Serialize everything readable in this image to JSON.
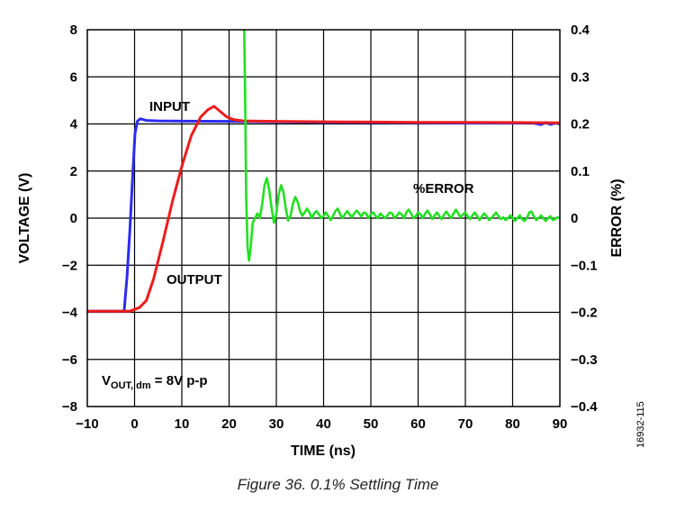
{
  "chart_data": {
    "type": "line",
    "xlabel": "TIME (ns)",
    "ylabel": "VOLTAGE (V)",
    "y2label": "ERROR (%)",
    "xlim": [
      -10,
      90
    ],
    "ylim": [
      -8,
      8
    ],
    "y2lim": [
      -0.4,
      0.4
    ],
    "grid": true,
    "x_ticks": [
      "−10",
      "0",
      "10",
      "20",
      "30",
      "40",
      "50",
      "60",
      "70",
      "80",
      "90"
    ],
    "y_ticks": [
      "8",
      "6",
      "4",
      "2",
      "0",
      "−2",
      "−4",
      "−6",
      "−8"
    ],
    "y2_ticks": [
      "0.4",
      "0.3",
      "0.2",
      "0.1",
      "0",
      "−0.1",
      "−0.2",
      "−0.3",
      "−0.4"
    ],
    "annotation": {
      "prefix": "V",
      "sub": "OUT, dm",
      "suffix": " = 8V p-p"
    },
    "series": [
      {
        "name": "INPUT",
        "axis": "left",
        "color": "#2c2cf0",
        "points": [
          [
            -10,
            -3.95
          ],
          [
            -2.2,
            -3.95
          ],
          [
            -1.6,
            -2.5
          ],
          [
            -1.0,
            -0.5
          ],
          [
            -0.4,
            1.8
          ],
          [
            0.1,
            3.6
          ],
          [
            0.6,
            4.12
          ],
          [
            1.2,
            4.22
          ],
          [
            2.5,
            4.15
          ],
          [
            5,
            4.13
          ],
          [
            10,
            4.12
          ],
          [
            20,
            4.11
          ],
          [
            30,
            4.09
          ],
          [
            40,
            4.07
          ],
          [
            50,
            4.06
          ],
          [
            60,
            4.05
          ],
          [
            70,
            4.04
          ],
          [
            80,
            4.04
          ],
          [
            84,
            4.05
          ],
          [
            86,
            3.97
          ],
          [
            87,
            4.06
          ],
          [
            88,
            3.98
          ],
          [
            89,
            4.04
          ],
          [
            90,
            4.0
          ]
        ]
      },
      {
        "name": "OUTPUT",
        "axis": "left",
        "color": "#ee1c1c",
        "points": [
          [
            -10,
            -3.95
          ],
          [
            -1,
            -3.95
          ],
          [
            1,
            -3.8
          ],
          [
            2.5,
            -3.5
          ],
          [
            4,
            -2.6
          ],
          [
            6,
            -1.0
          ],
          [
            8,
            0.7
          ],
          [
            10,
            2.2
          ],
          [
            12,
            3.5
          ],
          [
            14,
            4.3
          ],
          [
            15.5,
            4.6
          ],
          [
            16.8,
            4.75
          ],
          [
            18.2,
            4.52
          ],
          [
            19.5,
            4.3
          ],
          [
            21,
            4.18
          ],
          [
            23,
            4.13
          ],
          [
            26,
            4.12
          ],
          [
            30,
            4.11
          ],
          [
            40,
            4.09
          ],
          [
            50,
            4.08
          ],
          [
            60,
            4.07
          ],
          [
            70,
            4.07
          ],
          [
            80,
            4.06
          ],
          [
            90,
            4.05
          ]
        ]
      },
      {
        "name": "%ERROR",
        "axis": "right",
        "color": "#22e022",
        "points": [
          [
            23.2,
            0.4
          ],
          [
            23.4,
            0.25
          ],
          [
            23.6,
            0.05
          ],
          [
            23.9,
            -0.06
          ],
          [
            24.2,
            -0.09
          ],
          [
            24.5,
            -0.07
          ],
          [
            25,
            -0.01
          ],
          [
            25.5,
            0.0
          ],
          [
            26,
            0.01
          ],
          [
            26.5,
            0.0
          ],
          [
            27,
            0.03
          ],
          [
            27.5,
            0.07
          ],
          [
            28,
            0.085
          ],
          [
            28.5,
            0.06
          ],
          [
            29,
            0.02
          ],
          [
            29.5,
            -0.01
          ],
          [
            30,
            0.01
          ],
          [
            30.5,
            0.05
          ],
          [
            31,
            0.07
          ],
          [
            31.5,
            0.055
          ],
          [
            32,
            0.02
          ],
          [
            32.5,
            -0.005
          ],
          [
            33,
            0.005
          ],
          [
            33.5,
            0.03
          ],
          [
            34,
            0.045
          ],
          [
            34.5,
            0.035
          ],
          [
            35,
            0.015
          ],
          [
            35.5,
            0.005
          ],
          [
            36,
            0.012
          ],
          [
            36.5,
            0.02
          ],
          [
            37,
            0.012
          ],
          [
            37.5,
            0.0
          ],
          [
            38,
            0.01
          ],
          [
            38.5,
            0.015
          ],
          [
            39,
            0.008
          ],
          [
            39.5,
            0.0
          ],
          [
            40,
            0.005
          ],
          [
            40.5,
            0.012
          ],
          [
            41,
            0.004
          ],
          [
            41.5,
            -0.004
          ],
          [
            42,
            0.005
          ],
          [
            42.5,
            0.015
          ],
          [
            43,
            0.02
          ],
          [
            43.5,
            0.008
          ],
          [
            44,
            0.0
          ],
          [
            44.5,
            0.008
          ],
          [
            45,
            0.015
          ],
          [
            45.5,
            0.008
          ],
          [
            46,
            0.002
          ],
          [
            46.5,
            0.01
          ],
          [
            47,
            0.016
          ],
          [
            47.5,
            0.01
          ],
          [
            48,
            0.004
          ],
          [
            48.5,
            0.012
          ],
          [
            49,
            0.01
          ],
          [
            49.5,
            0.0
          ],
          [
            50,
            0.008
          ],
          [
            50.5,
            0.012
          ],
          [
            51,
            0.005
          ],
          [
            51.5,
            0.0
          ],
          [
            52,
            0.01
          ],
          [
            52.5,
            0.005
          ],
          [
            53,
            0.0
          ],
          [
            53.5,
            0.006
          ],
          [
            54,
            0.012
          ],
          [
            54.5,
            0.01
          ],
          [
            55,
            0.0
          ],
          [
            55.5,
            0.005
          ],
          [
            56,
            0.012
          ],
          [
            56.5,
            0.008
          ],
          [
            57,
            0.0
          ],
          [
            57.5,
            0.012
          ],
          [
            58,
            0.018
          ],
          [
            58.5,
            0.01
          ],
          [
            59,
            0.0
          ],
          [
            59.5,
            0.004
          ],
          [
            60,
            0.012
          ],
          [
            60.5,
            0.008
          ],
          [
            61,
            0.0
          ],
          [
            61.5,
            0.01
          ],
          [
            62,
            0.016
          ],
          [
            62.5,
            0.008
          ],
          [
            63,
            -0.002
          ],
          [
            63.5,
            0.006
          ],
          [
            64,
            0.012
          ],
          [
            64.5,
            0.004
          ],
          [
            65,
            -0.002
          ],
          [
            65.5,
            0.008
          ],
          [
            66,
            0.014
          ],
          [
            66.5,
            0.006
          ],
          [
            67,
            0.0
          ],
          [
            67.5,
            0.01
          ],
          [
            68,
            0.018
          ],
          [
            68.5,
            0.01
          ],
          [
            69,
            0.002
          ],
          [
            69.5,
            0.008
          ],
          [
            70,
            0.012
          ],
          [
            70.5,
            0.004
          ],
          [
            71,
            -0.002
          ],
          [
            71.5,
            0.006
          ],
          [
            72,
            0.012
          ],
          [
            72.5,
            0.004
          ],
          [
            73,
            -0.004
          ],
          [
            73.5,
            0.004
          ],
          [
            74,
            0.01
          ],
          [
            74.5,
            0.004
          ],
          [
            75,
            -0.004
          ],
          [
            75.5,
            0.0
          ],
          [
            76,
            0.006
          ],
          [
            76.5,
            0.012
          ],
          [
            77,
            0.004
          ],
          [
            77.5,
            -0.002
          ],
          [
            78,
            0.002
          ],
          [
            78.5,
            -0.004
          ],
          [
            79,
            0.0
          ],
          [
            79.5,
            0.006
          ],
          [
            80,
            0.0
          ],
          [
            80.5,
            -0.006
          ],
          [
            81,
            0.0
          ],
          [
            81.5,
            0.006
          ],
          [
            82,
            -0.002
          ],
          [
            82.5,
            -0.006
          ],
          [
            83,
            0.0
          ],
          [
            83.5,
            0.012
          ],
          [
            84,
            0.014
          ],
          [
            84.5,
            0.004
          ],
          [
            85,
            -0.004
          ],
          [
            85.5,
            0.0
          ],
          [
            86,
            0.006
          ],
          [
            86.5,
            0.0
          ],
          [
            87,
            -0.006
          ],
          [
            87.5,
            0.0
          ],
          [
            88,
            0.004
          ],
          [
            88.5,
            -0.004
          ],
          [
            89,
            -0.002
          ],
          [
            89.5,
            0.002
          ],
          [
            90,
            0.0
          ]
        ]
      }
    ]
  },
  "caption": "Figure 36. 0.1% Settling Time",
  "figure_id": "16932-115"
}
